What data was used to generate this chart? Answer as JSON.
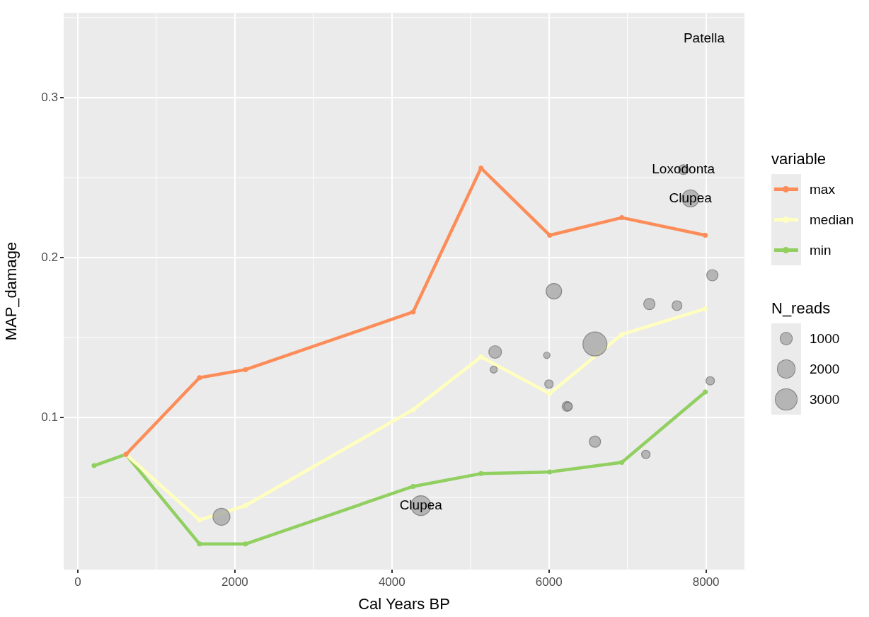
{
  "chart_data": {
    "type": "line",
    "xlabel": "Cal Years BP",
    "ylabel": "MAP_damage",
    "legend_title": "variable",
    "legend": "right",
    "grid": true,
    "marker": "circle",
    "line_style": "solid",
    "xlim": [
      -180,
      8490
    ],
    "xticks": [
      0,
      2000,
      4000,
      6000,
      8000
    ],
    "ylim": [
      0.005,
      0.353
    ],
    "yticks": [
      0.1,
      0.2,
      0.3
    ],
    "size_legend": [
      1000,
      2000,
      3000
    ],
    "series": [
      {
        "name": "max",
        "color": "#fc8d59",
        "x": [
          613,
          1550,
          2135,
          4270,
          5135,
          6009,
          6928,
          7991
        ],
        "values": [
          0.077,
          0.125,
          0.13,
          0.166,
          0.256,
          0.214,
          0.225,
          0.214
        ]
      },
      {
        "name": "median",
        "color": "#ffffbf",
        "x": [
          613,
          1550,
          2135,
          4270,
          5135,
          6009,
          6928,
          7991
        ],
        "values": [
          0.077,
          0.036,
          0.045,
          0.105,
          0.138,
          0.115,
          0.152,
          0.168
        ]
      },
      {
        "name": "min",
        "color": "#91cf60",
        "x": [
          207,
          613,
          1550,
          2135,
          4270,
          5135,
          6009,
          6928,
          7991
        ],
        "values": [
          0.07,
          0.077,
          0.021,
          0.021,
          0.057,
          0.065,
          0.066,
          0.072,
          0.116
        ]
      },
      {
        "name": "N_reads",
        "type": "bubble",
        "color": "#a3a3a3",
        "x": [
          7712,
          7802,
          8081,
          6063,
          7279,
          7631,
          6586,
          5315,
          5973,
          5297,
          6000,
          8054,
          6230,
          6245,
          6586,
          7234,
          4369,
          1829
        ],
        "values": [
          0.255,
          0.237,
          0.189,
          0.179,
          0.171,
          0.17,
          0.146,
          0.141,
          0.139,
          0.13,
          0.121,
          0.123,
          0.107,
          0.107,
          0.085,
          0.077,
          0.045,
          0.038
        ],
        "sizes": [
          570,
          1690,
          750,
          1420,
          750,
          570,
          3390,
          950,
          240,
          290,
          420,
          420,
          570,
          420,
          750,
          420,
          2300,
          1690
        ]
      }
    ],
    "annotations": [
      "Patella",
      {
        "text": "Loxodonta",
        "x": 7712,
        "y": 0.255
      },
      {
        "text": "Clupea",
        "x": 7802,
        "y": 0.237
      },
      {
        "text": "Clupea",
        "x": 4369,
        "y": 0.045
      }
    ]
  }
}
